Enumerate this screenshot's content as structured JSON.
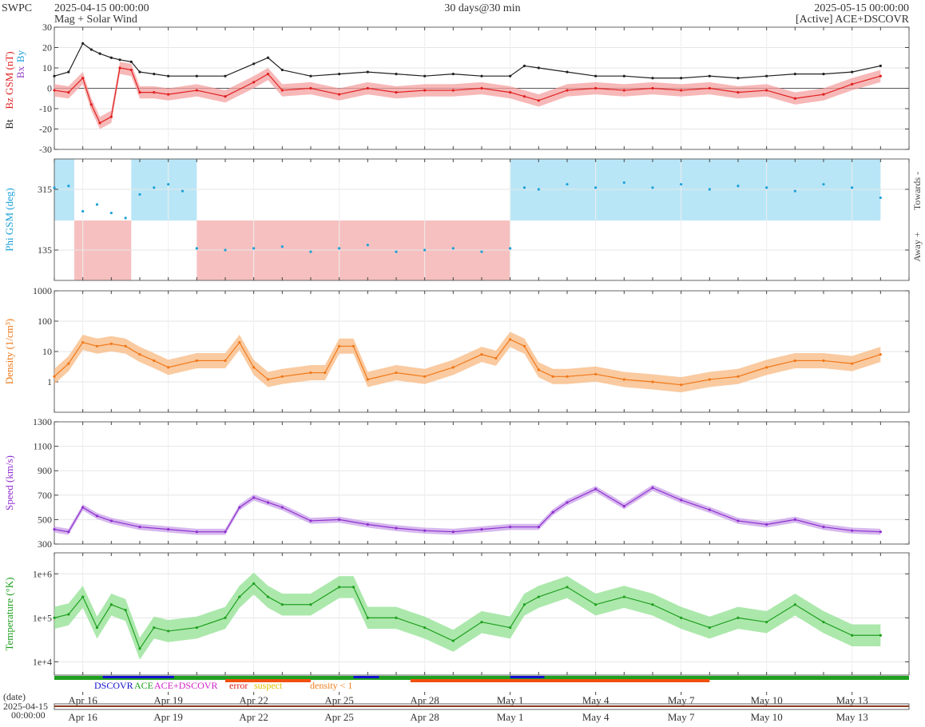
{
  "header": {
    "org": "SWPC",
    "start_time": "2025-04-15 00:00:00",
    "subtitle": "Mag + Solar Wind",
    "span": "30 days@30 min",
    "end_time": "2025-05-15 00:00:00",
    "source": "[Active] ACE+DSCOVR"
  },
  "x_axis": {
    "domain_days": [
      0,
      30
    ],
    "tick_labels": [
      "Apr 16",
      "Apr 19",
      "Apr 22",
      "Apr 25",
      "Apr 28",
      "May 1",
      "May 4",
      "May 7",
      "May 10",
      "May 13"
    ],
    "tick_days": [
      1,
      4,
      7,
      10,
      13,
      16,
      19,
      22,
      25,
      28
    ],
    "date_label": "(date)",
    "start_date": "2025-04-15",
    "start_clock": "00:00:00"
  },
  "legend": {
    "items": [
      {
        "label": "DSCOVR",
        "color": "#1010cc"
      },
      {
        "label": "ACE",
        "color": "#20a020"
      },
      {
        "label": "ACE+DSCOVR",
        "color": "#d020c8"
      },
      {
        "label": "error",
        "color": "#e02020"
      },
      {
        "label": "suspect",
        "color": "#e0c000"
      },
      {
        "label": "density < 1",
        "color": "#f08020"
      }
    ]
  },
  "colors": {
    "bt": "#222222",
    "bz": "#e02020",
    "bz_fill": "#f4a0a0",
    "by": "#1da1d8",
    "bx": "#9040c0",
    "bx_fill": "#c8b0e0",
    "phi": "#1da1d8",
    "phi_toward": "#b9e6f7",
    "phi_away": "#f7c0c0",
    "density": "#f07818",
    "density_fill": "#f8b880",
    "speed": "#9030d0",
    "speed_fill": "#c8a0e8",
    "temp": "#20a020",
    "temp_fill": "#90e090"
  },
  "chart_data": [
    {
      "type": "line",
      "id": "mag",
      "ylabel_parts": [
        "Bt",
        "Bz GSM (nT)",
        "Bx",
        "By"
      ],
      "ylim": [
        -30,
        30
      ],
      "yticks": [
        "30",
        "20",
        "10",
        "0",
        "-10",
        "-20",
        "-30"
      ],
      "ytick_values": [
        30,
        20,
        10,
        0,
        -10,
        -20,
        -30
      ],
      "series": [
        {
          "name": "Bt",
          "x": [
            0,
            0.5,
            1,
            1.3,
            1.6,
            2,
            2.3,
            2.7,
            3,
            3.5,
            4,
            5,
            6,
            7,
            7.5,
            8,
            9,
            10,
            11,
            12,
            13,
            14,
            15,
            16,
            16.5,
            17,
            18,
            19,
            20,
            21,
            22,
            23,
            24,
            25,
            26,
            27,
            28,
            29
          ],
          "y": [
            6,
            8,
            22,
            19,
            17,
            15,
            14,
            13,
            8,
            7,
            6,
            6,
            6,
            12,
            15,
            9,
            6,
            7,
            8,
            7,
            6,
            7,
            6,
            6,
            11,
            10,
            8,
            6,
            6,
            5,
            5,
            6,
            5,
            6,
            7,
            7,
            8,
            11
          ]
        },
        {
          "name": "Bz",
          "x": [
            0,
            0.5,
            1,
            1.3,
            1.6,
            2,
            2.3,
            2.7,
            3,
            3.5,
            4,
            5,
            6,
            7,
            7.5,
            8,
            9,
            10,
            11,
            12,
            13,
            14,
            15,
            16,
            16.5,
            17,
            18,
            19,
            20,
            21,
            22,
            23,
            24,
            25,
            26,
            27,
            28,
            29
          ],
          "y": [
            -1,
            -2,
            5,
            -8,
            -17,
            -14,
            10,
            9,
            -2,
            -2,
            -3,
            -1,
            -4,
            3,
            7,
            -1,
            0,
            -3,
            0,
            -2,
            -1,
            -1,
            0,
            -2,
            -4,
            -6,
            -1,
            0,
            -1,
            0,
            -1,
            0,
            -2,
            -1,
            -5,
            -3,
            2,
            6
          ]
        }
      ]
    },
    {
      "type": "scatter",
      "id": "phi",
      "ylabel": "Phi GSM (deg)",
      "ylim": [
        45,
        405
      ],
      "yticks": [
        "315",
        "135"
      ],
      "ytick_values": [
        315,
        135
      ],
      "right_labels": [
        "Towards -",
        "Away +"
      ],
      "sectors": [
        {
          "from": 0,
          "to": 0.7,
          "sign": "toward"
        },
        {
          "from": 0.7,
          "to": 2.7,
          "sign": "away"
        },
        {
          "from": 2.7,
          "to": 5,
          "sign": "toward"
        },
        {
          "from": 5,
          "to": 16,
          "sign": "away"
        },
        {
          "from": 16,
          "to": 29,
          "sign": "toward"
        }
      ],
      "series": [
        {
          "name": "Phi",
          "x": [
            0,
            0.5,
            1,
            1.5,
            2,
            2.5,
            3,
            3.5,
            4,
            4.5,
            5,
            6,
            7,
            8,
            9,
            10,
            11,
            12,
            13,
            14,
            15,
            16,
            16.5,
            17,
            18,
            19,
            20,
            21,
            22,
            23,
            24,
            25,
            26,
            27,
            28,
            29
          ],
          "y": [
            320,
            325,
            250,
            270,
            245,
            230,
            300,
            320,
            330,
            310,
            140,
            135,
            140,
            145,
            130,
            140,
            150,
            130,
            135,
            140,
            130,
            140,
            320,
            315,
            330,
            320,
            335,
            320,
            330,
            315,
            325,
            320,
            310,
            330,
            320,
            290
          ]
        }
      ]
    },
    {
      "type": "line",
      "id": "density",
      "ylabel": "Density (1/cm³)",
      "log": true,
      "ylim": [
        0.1,
        1000
      ],
      "yticks": [
        "1000",
        "100",
        "10",
        "1"
      ],
      "ytick_values": [
        1000,
        100,
        10,
        1
      ],
      "series": [
        {
          "name": "Density",
          "x": [
            0,
            0.5,
            1,
            1.5,
            2,
            2.5,
            3,
            3.5,
            4,
            5,
            6,
            6.5,
            7,
            7.5,
            8,
            9,
            9.5,
            10,
            10.5,
            11,
            12,
            13,
            14,
            15,
            15.5,
            16,
            16.5,
            17,
            17.5,
            18,
            19,
            20,
            21,
            22,
            23,
            24,
            25,
            26,
            27,
            28,
            29
          ],
          "y": [
            1.5,
            4,
            20,
            15,
            18,
            15,
            8,
            5,
            3,
            5,
            5,
            20,
            3,
            1.2,
            1.5,
            2,
            2,
            15,
            15,
            1.2,
            2,
            1.5,
            3,
            8,
            6,
            25,
            15,
            2.5,
            1.5,
            1.5,
            1.8,
            1.2,
            1.0,
            0.8,
            1.2,
            1.5,
            3,
            5,
            5,
            4,
            8
          ]
        }
      ]
    },
    {
      "type": "line",
      "id": "speed",
      "ylabel": "Speed (km/s)",
      "ylim": [
        300,
        1300
      ],
      "yticks": [
        "1300",
        "1100",
        "900",
        "700",
        "500",
        "300"
      ],
      "ytick_values": [
        1300,
        1100,
        900,
        700,
        500,
        300
      ],
      "series": [
        {
          "name": "Speed",
          "x": [
            0,
            0.5,
            1,
            1.5,
            2,
            3,
            4,
            5,
            6,
            6.5,
            7,
            7.5,
            8,
            9,
            10,
            11,
            12,
            13,
            14,
            15,
            16,
            17,
            17.5,
            18,
            19,
            20,
            21,
            22,
            23,
            24,
            25,
            26,
            27,
            28,
            29
          ],
          "y": [
            420,
            400,
            600,
            530,
            490,
            440,
            420,
            400,
            400,
            600,
            680,
            640,
            600,
            490,
            500,
            460,
            430,
            410,
            400,
            420,
            440,
            440,
            560,
            640,
            750,
            610,
            760,
            660,
            580,
            490,
            460,
            500,
            440,
            410,
            400
          ]
        }
      ]
    },
    {
      "type": "line",
      "id": "temp",
      "ylabel": "Temperature (°K)",
      "log": true,
      "ylim": [
        5000,
        3000000
      ],
      "yticks": [
        "1e+6",
        "1e+5",
        "1e+4"
      ],
      "ytick_values": [
        1000000,
        100000,
        10000
      ],
      "series": [
        {
          "name": "Temperature",
          "x": [
            0,
            0.5,
            1,
            1.5,
            2,
            2.5,
            3,
            3.5,
            4,
            5,
            6,
            6.5,
            7,
            7.5,
            8,
            9,
            10,
            10.5,
            11,
            12,
            13,
            14,
            15,
            16,
            16.5,
            17,
            18,
            19,
            20,
            21,
            22,
            23,
            24,
            25,
            26,
            27,
            28,
            29
          ],
          "y": [
            100000,
            120000,
            300000,
            60000,
            200000,
            150000,
            20000,
            60000,
            50000,
            60000,
            100000,
            300000,
            600000,
            300000,
            200000,
            200000,
            500000,
            500000,
            100000,
            100000,
            60000,
            30000,
            80000,
            60000,
            200000,
            300000,
            500000,
            200000,
            300000,
            200000,
            100000,
            60000,
            100000,
            80000,
            200000,
            80000,
            40000,
            40000
          ]
        }
      ]
    }
  ]
}
